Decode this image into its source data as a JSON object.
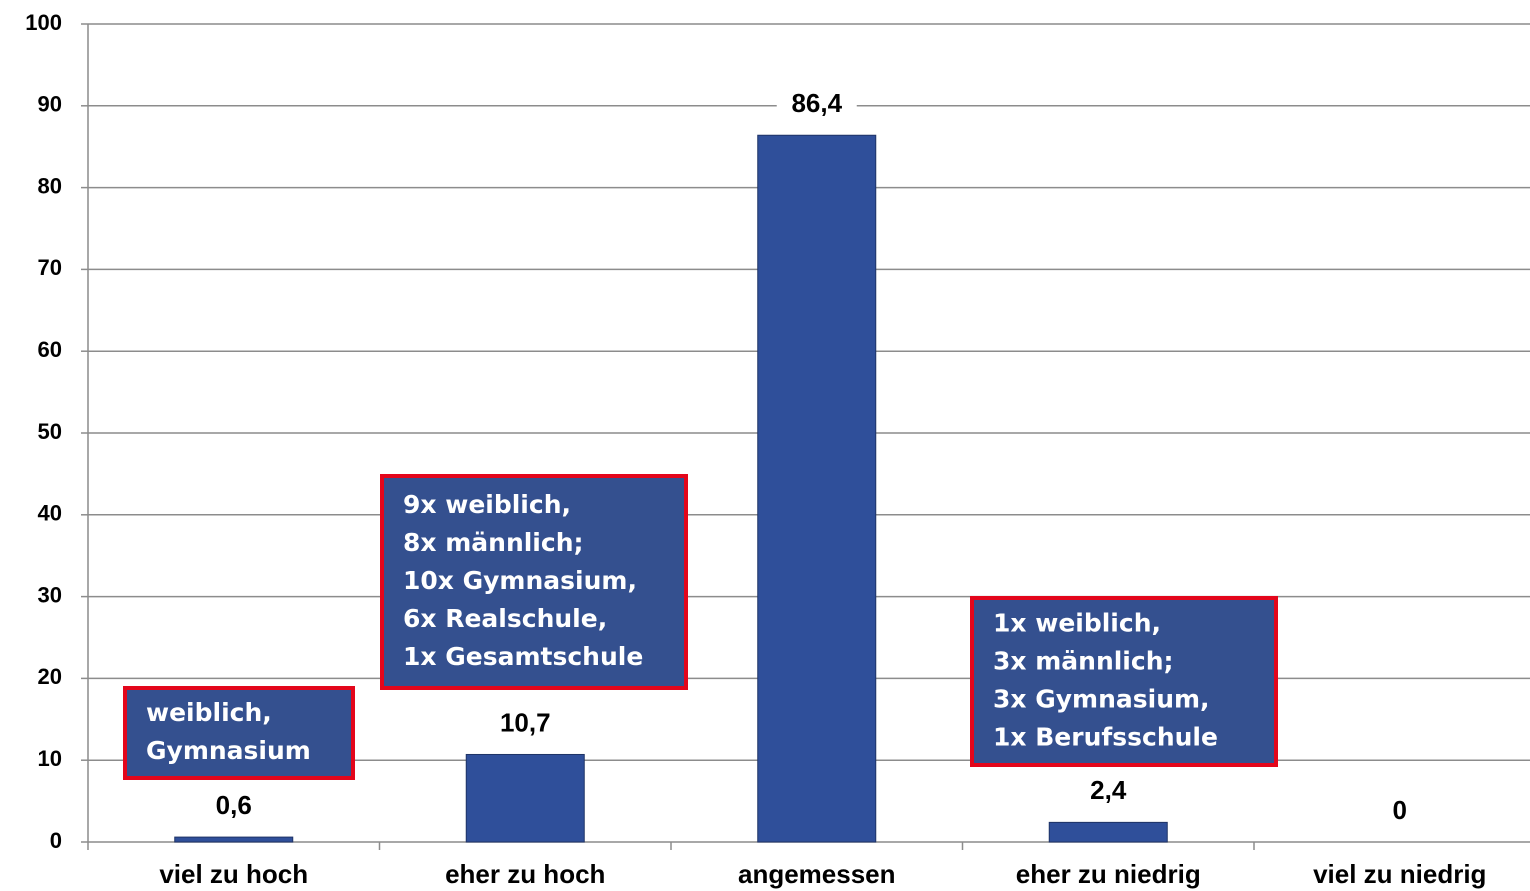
{
  "chart_data": {
    "type": "bar",
    "categories": [
      "viel zu hoch",
      "eher zu hoch",
      "angemessen",
      "eher zu niedrig",
      "viel zu niedrig"
    ],
    "values": [
      0.6,
      10.7,
      86.4,
      2.4,
      0
    ],
    "value_labels": [
      "0,6",
      "10,7",
      "86,4",
      "2,4",
      "0"
    ],
    "color": "#2f4f9a",
    "ylim": [
      0,
      100
    ],
    "yticks": [
      0,
      10,
      20,
      30,
      40,
      50,
      60,
      70,
      80,
      90,
      100
    ],
    "grid": true,
    "annotations": [
      [
        "weiblich,",
        "Gymnasium"
      ],
      [
        "9x weiblich,",
        "8x männlich;",
        "10x Gymnasium,",
        "6x Realschule,",
        "1x Gesamtschule"
      ],
      [
        "1x weiblich,",
        "3x männlich;",
        "3x Gymnasium,",
        "1x Berufsschule"
      ]
    ]
  }
}
